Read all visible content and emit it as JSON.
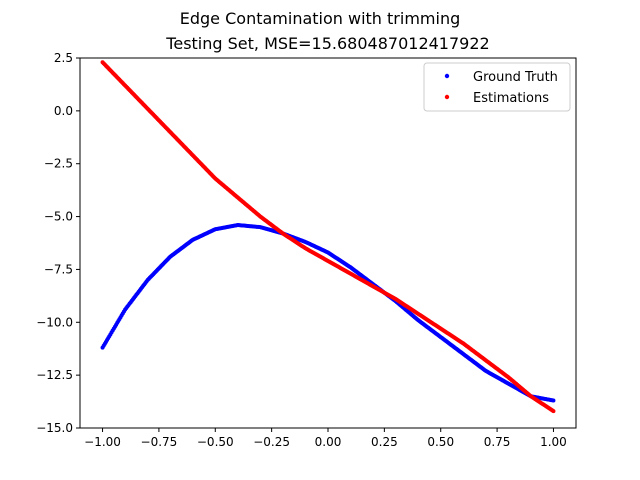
{
  "chart_data": {
    "type": "scatter",
    "title": "Edge Contamination with trimming",
    "subtitle": "Testing Set, MSE=15.680487012417922",
    "xlabel": "",
    "ylabel": "",
    "xlim": [
      -1.1,
      1.1
    ],
    "ylim": [
      -15.0,
      2.5
    ],
    "xticks": [
      -1.0,
      -0.75,
      -0.5,
      -0.25,
      0.0,
      0.25,
      0.5,
      0.75,
      1.0
    ],
    "xtick_labels": [
      "−1.00",
      "−0.75",
      "−0.50",
      "−0.25",
      "0.00",
      "0.25",
      "0.50",
      "0.75",
      "1.00"
    ],
    "yticks": [
      2.5,
      0.0,
      -2.5,
      -5.0,
      -7.5,
      -10.0,
      -12.5,
      -15.0
    ],
    "ytick_labels": [
      "2.5",
      "0.0",
      "−2.5",
      "−5.0",
      "−7.5",
      "−10.0",
      "−12.5",
      "−15.0"
    ],
    "grid": false,
    "legend_position": "top-right",
    "series": [
      {
        "name": "Ground Truth",
        "color": "#0000ff",
        "x": [
          -1.0,
          -0.9,
          -0.8,
          -0.7,
          -0.6,
          -0.5,
          -0.4,
          -0.3,
          -0.2,
          -0.1,
          0.0,
          0.1,
          0.2,
          0.3,
          0.4,
          0.5,
          0.6,
          0.7,
          0.8,
          0.9,
          1.0
        ],
        "y": [
          -11.2,
          -9.4,
          -8.0,
          -6.9,
          -6.1,
          -5.6,
          -5.4,
          -5.5,
          -5.8,
          -6.2,
          -6.7,
          -7.4,
          -8.2,
          -9.0,
          -9.9,
          -10.7,
          -11.5,
          -12.3,
          -12.9,
          -13.5,
          -13.7
        ]
      },
      {
        "name": "Estimations",
        "color": "#ff0000",
        "x": [
          -1.0,
          -0.9,
          -0.8,
          -0.7,
          -0.6,
          -0.5,
          -0.4,
          -0.3,
          -0.2,
          -0.1,
          0.0,
          0.1,
          0.2,
          0.3,
          0.4,
          0.5,
          0.6,
          0.7,
          0.8,
          0.9,
          1.0
        ],
        "y": [
          2.3,
          1.2,
          0.1,
          -1.0,
          -2.1,
          -3.2,
          -4.1,
          -5.0,
          -5.8,
          -6.5,
          -7.1,
          -7.7,
          -8.3,
          -8.9,
          -9.6,
          -10.3,
          -11.0,
          -11.8,
          -12.6,
          -13.5,
          -14.2
        ]
      }
    ]
  }
}
